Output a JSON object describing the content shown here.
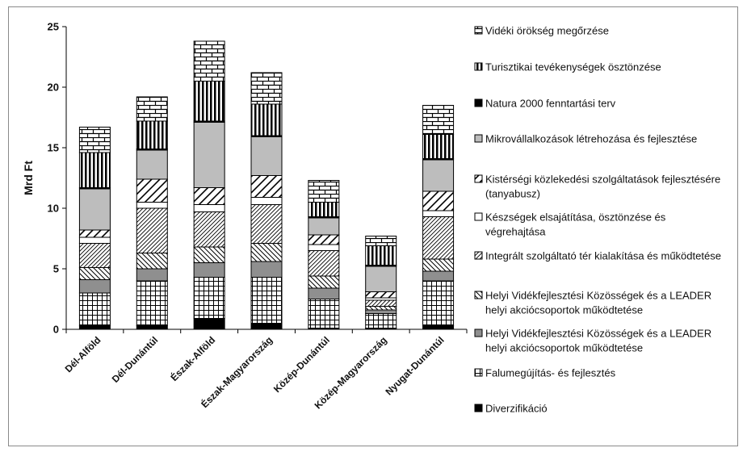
{
  "chart_data": {
    "type": "bar",
    "stacked": true,
    "ylabel": "Mrd Ft",
    "ylim": [
      0,
      25
    ],
    "yticks": [
      0,
      5,
      10,
      15,
      20,
      25
    ],
    "grid": false,
    "legend_position": "right",
    "categories": [
      "Dél-Alföld",
      "Dél-Dunántúl",
      "Észak-Alföld",
      "Észak-Magyarország",
      "Közép-Dunántúl",
      "Közép-Magyarország",
      "Nyugat-Dunántúl"
    ],
    "series": [
      {
        "name": "Diverzifikáció",
        "pattern": "solid-black",
        "values": [
          0.3,
          0.3,
          0.9,
          0.5,
          0.1,
          0.1,
          0.3
        ]
      },
      {
        "name": "Falumegújítás- és fejlesztés",
        "pattern": "grid",
        "values": [
          2.7,
          3.7,
          3.4,
          3.8,
          2.4,
          1.2,
          3.7
        ]
      },
      {
        "name": "Helyi Vidékfejlesztési Közösségek és a LEADER helyi akciócsoportok működtetése",
        "pattern": "gray",
        "values": [
          1.1,
          1.0,
          1.2,
          1.3,
          0.9,
          0.3,
          0.8
        ]
      },
      {
        "name": "Helyi Vidékfejlesztési Közösségek és a LEADER helyi akciócsoportok működtetése",
        "pattern": "diag-back",
        "values": [
          1.0,
          1.3,
          1.3,
          1.5,
          1.0,
          0.3,
          1.0
        ]
      },
      {
        "name": "Integrált szolgáltató tér kialakítása és működtetése",
        "pattern": "diag-fwd",
        "values": [
          2.0,
          3.7,
          2.9,
          3.2,
          2.1,
          0.5,
          3.5
        ]
      },
      {
        "name": "Készségek elsajátítása, ösztönzése és végrehajtása",
        "pattern": "white",
        "values": [
          0.5,
          0.5,
          0.6,
          0.6,
          0.5,
          0.2,
          0.5
        ]
      },
      {
        "name": "Kistérségi közlekedési szolgáltatások fejlesztésére (tanyabusz)",
        "pattern": "diag-cross",
        "values": [
          0.6,
          1.9,
          1.4,
          1.8,
          0.8,
          0.5,
          1.6
        ]
      },
      {
        "name": "Mikrovállalkozások létrehozása és fejlesztése",
        "pattern": "light-gray",
        "values": [
          3.4,
          2.4,
          5.4,
          3.2,
          1.4,
          2.1,
          2.6
        ]
      },
      {
        "name": "Natura 2000 fenntartási terv",
        "pattern": "solid-black",
        "values": [
          0.1,
          0.1,
          0.1,
          0.1,
          0.1,
          0.1,
          0.1
        ]
      },
      {
        "name": "Turisztikai tevékenységek ösztönzése",
        "pattern": "vertical",
        "values": [
          2.9,
          2.3,
          3.3,
          2.6,
          1.2,
          1.6,
          2.0
        ]
      },
      {
        "name": "Vidéki örökség megőrzése",
        "pattern": "brick",
        "values": [
          2.1,
          2.0,
          3.3,
          2.6,
          1.8,
          0.8,
          2.4
        ]
      }
    ]
  }
}
